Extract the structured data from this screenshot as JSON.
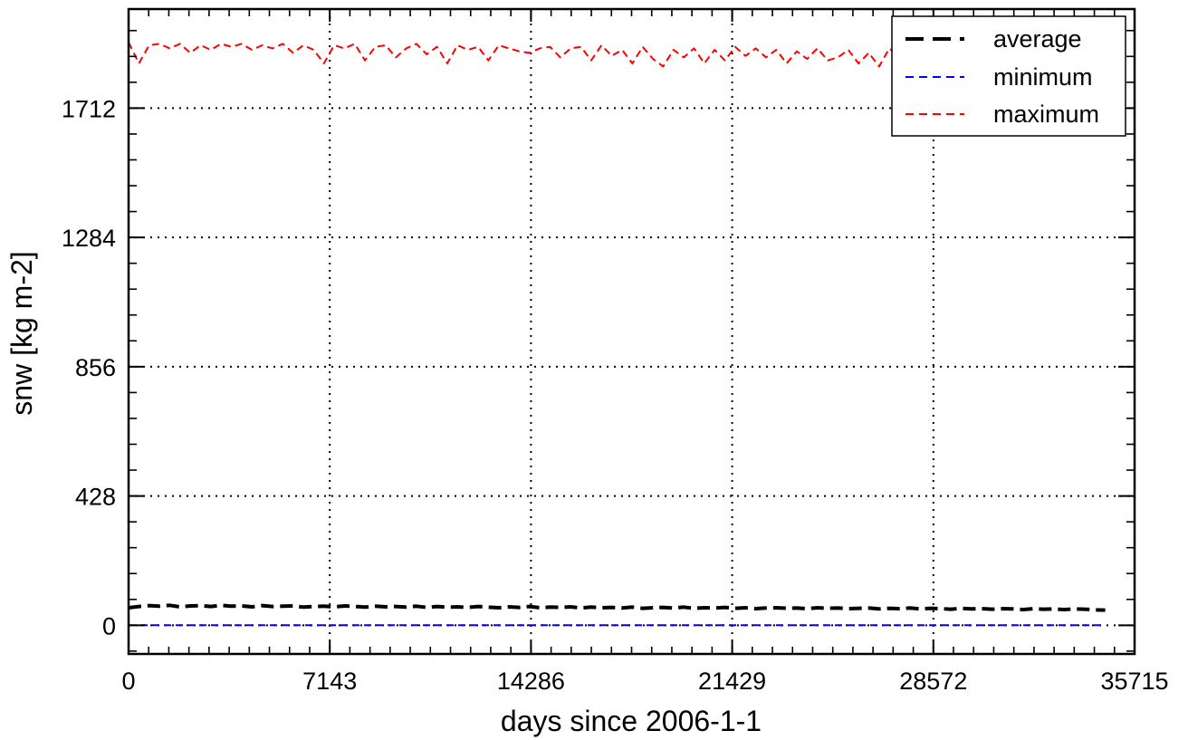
{
  "chart_data": {
    "type": "line",
    "title": "",
    "xlabel": "days since 2006-1-1",
    "ylabel": "snw [kg m-2]",
    "xlim": [
      0,
      35715
    ],
    "ylim": [
      -95,
      2040
    ],
    "xticks": [
      0,
      7143,
      14286,
      21429,
      28572,
      35715
    ],
    "xtick_labels": [
      "0",
      "7143",
      "14286",
      "21429",
      "28572",
      "35715"
    ],
    "yticks": [
      0,
      428,
      856,
      1284,
      1712
    ],
    "ytick_labels": [
      "0",
      "428",
      "856",
      "1284",
      "1712"
    ],
    "grid": true,
    "legend_position": "top-right",
    "series": [
      {
        "name": "average",
        "color": "#000000",
        "style": "long-dash",
        "x": [
          0,
          365,
          730,
          1095,
          1460,
          1825,
          2190,
          2555,
          2920,
          3285,
          3650,
          4015,
          4380,
          4745,
          5110,
          5475,
          5840,
          6205,
          6570,
          6935,
          7300,
          7665,
          8030,
          8395,
          8760,
          9125,
          9490,
          9855,
          10220,
          10585,
          10950,
          11315,
          11680,
          12045,
          12410,
          12775,
          13140,
          13505,
          13870,
          14235,
          14600,
          14965,
          15330,
          15695,
          16060,
          16425,
          16790,
          17155,
          17520,
          17885,
          18250,
          18615,
          18980,
          19345,
          19710,
          20075,
          20440,
          20805,
          21170,
          21535,
          21900,
          22265,
          22630,
          22995,
          23360,
          23725,
          24090,
          24455,
          24820,
          25185,
          25550,
          25915,
          26280,
          26645,
          27010,
          27375,
          27740,
          28105,
          28470,
          28835,
          29200,
          29565,
          29930,
          30295,
          30660,
          31025,
          31390,
          31755,
          32120,
          32485,
          32850,
          33215,
          33580,
          33945,
          34310,
          34675
        ],
        "values": [
          58,
          62,
          65,
          63,
          66,
          61,
          64,
          65,
          62,
          66,
          63,
          64,
          61,
          65,
          62,
          63,
          64,
          60,
          62,
          63,
          61,
          64,
          62,
          60,
          63,
          61,
          62,
          60,
          63,
          59,
          62,
          60,
          61,
          59,
          62,
          60,
          58,
          61,
          59,
          62,
          58,
          60,
          59,
          61,
          57,
          60,
          58,
          59,
          57,
          60,
          56,
          58,
          59,
          57,
          60,
          56,
          58,
          57,
          59,
          56,
          58,
          55,
          57,
          58,
          56,
          57,
          55,
          58,
          56,
          57,
          55,
          56,
          57,
          54,
          56,
          55,
          57,
          54,
          56,
          55,
          53,
          56,
          54,
          55,
          53,
          55,
          54,
          52,
          55,
          53,
          54,
          52,
          54,
          53,
          51,
          50
        ]
      },
      {
        "name": "minimum",
        "color": "#0000ff",
        "style": "dash",
        "x": [
          0,
          34675
        ],
        "values": [
          0,
          0
        ]
      },
      {
        "name": "maximum",
        "color": "#ff0000",
        "style": "dash",
        "x": [
          0,
          365,
          730,
          1095,
          1460,
          1825,
          2190,
          2555,
          2920,
          3285,
          3650,
          4015,
          4380,
          4745,
          5110,
          5475,
          5840,
          6205,
          6570,
          6935,
          7300,
          7665,
          8030,
          8395,
          8760,
          9125,
          9490,
          9855,
          10220,
          10585,
          10950,
          11315,
          11680,
          12045,
          12410,
          12775,
          13140,
          13505,
          13870,
          14235,
          14600,
          14965,
          15330,
          15695,
          16060,
          16425,
          16790,
          17155,
          17520,
          17885,
          18250,
          18615,
          18980,
          19345,
          19710,
          20075,
          20440,
          20805,
          21170,
          21535,
          21900,
          22265,
          22630,
          22995,
          23360,
          23725,
          24090,
          24455,
          24820,
          25185,
          25550,
          25915,
          26280,
          26645,
          27010,
          27375,
          27740,
          28105,
          28470,
          28835,
          29200,
          29565,
          29930,
          30295,
          30660,
          31025,
          31390,
          31755,
          32120,
          32485,
          32850,
          33215,
          33580,
          33945,
          34310,
          34675
        ],
        "values": [
          1930,
          1860,
          1920,
          1925,
          1910,
          1925,
          1895,
          1920,
          1905,
          1925,
          1915,
          1925,
          1905,
          1920,
          1910,
          1925,
          1895,
          1920,
          1905,
          1860,
          1920,
          1910,
          1925,
          1870,
          1915,
          1920,
          1880,
          1910,
          1925,
          1890,
          1915,
          1860,
          1920,
          1905,
          1915,
          1870,
          1920,
          1910,
          1900,
          1895,
          1910,
          1915,
          1880,
          1910,
          1915,
          1870,
          1920,
          1885,
          1905,
          1860,
          1915,
          1875,
          1850,
          1905,
          1880,
          1910,
          1860,
          1905,
          1870,
          1915,
          1885,
          1910,
          1880,
          1905,
          1860,
          1900,
          1875,
          1910,
          1870,
          1880,
          1905,
          1860,
          1895,
          1850,
          1910,
          1880,
          1895,
          1840,
          1900,
          1860,
          1880,
          1905,
          1860,
          1890,
          1875,
          1900,
          1860,
          1885,
          1905,
          1870,
          1890,
          1880,
          1900,
          1870,
          1885,
          1895
        ]
      }
    ]
  }
}
